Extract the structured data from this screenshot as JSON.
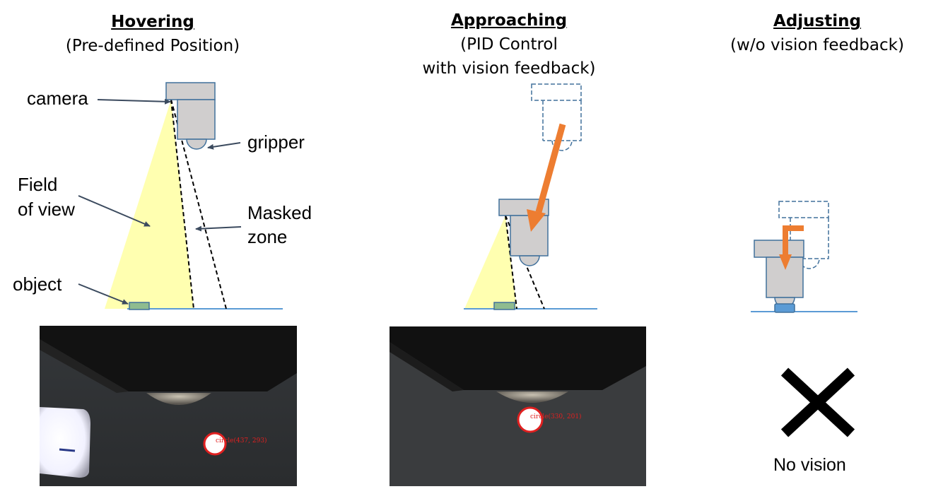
{
  "phases": [
    {
      "title": "Hovering",
      "subtitle_lines": [
        "(Pre-defined Position)"
      ]
    },
    {
      "title": "Approaching",
      "subtitle_lines": [
        "(PID Control",
        "with vision feedback)"
      ]
    },
    {
      "title": "Adjusting",
      "subtitle_lines": [
        "(w/o vision feedback)"
      ]
    }
  ],
  "annotations": {
    "camera": "camera",
    "gripper": "gripper",
    "field_of_view_line1": "Field",
    "field_of_view_line2": "of view",
    "masked_zone_line1": "Masked",
    "masked_zone_line2": "zone",
    "object": "object"
  },
  "detections": [
    {
      "label": "circle(437, 293)"
    },
    {
      "label": "circle(330, 201)"
    }
  ],
  "no_vision_label": "No vision",
  "colors": {
    "field_of_view": "#FFFFB0",
    "gripper_body": "#D0CECE",
    "gripper_outline": "#41719C",
    "object": "#8FBC8F",
    "ground_line": "#5B9BD5",
    "motion_arrow": "#ED7D31",
    "detection_circle": "#E02020"
  }
}
